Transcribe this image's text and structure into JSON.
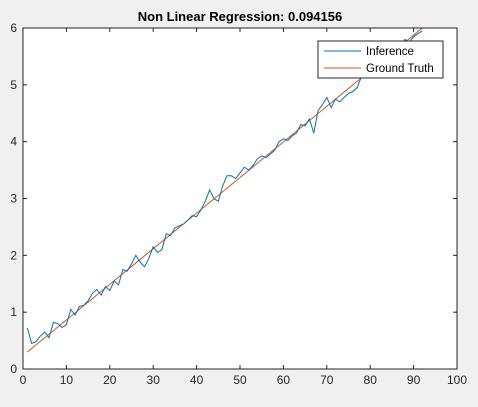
{
  "chart_data": {
    "type": "line",
    "title": "Non Linear Regression: 0.094156",
    "xlabel": "",
    "ylabel": "",
    "xlim": [
      0,
      100
    ],
    "ylim": [
      0,
      6
    ],
    "x_ticks": [
      0,
      10,
      20,
      30,
      40,
      50,
      60,
      70,
      80,
      90,
      100
    ],
    "y_ticks": [
      0,
      1,
      2,
      3,
      4,
      5,
      6
    ],
    "grid": false,
    "legend_position": "top-right",
    "series": [
      {
        "name": "Inference",
        "color": "#0072bd",
        "x": [
          1,
          2,
          3,
          4,
          5,
          6,
          7,
          8,
          9,
          10,
          11,
          12,
          13,
          14,
          15,
          16,
          17,
          18,
          19,
          20,
          21,
          22,
          23,
          24,
          25,
          26,
          27,
          28,
          29,
          30,
          31,
          32,
          33,
          34,
          35,
          36,
          37,
          38,
          39,
          40,
          41,
          42,
          43,
          44,
          45,
          46,
          47,
          48,
          49,
          50,
          51,
          52,
          53,
          54,
          55,
          56,
          57,
          58,
          59,
          60,
          61,
          62,
          63,
          64,
          65,
          66,
          67,
          68,
          69,
          70,
          71,
          72,
          73,
          74,
          75,
          76,
          77,
          78,
          79,
          80,
          81,
          82,
          83,
          84,
          85,
          86,
          87,
          88,
          89,
          90,
          91,
          92
        ],
        "y": [
          0.72,
          0.45,
          0.48,
          0.58,
          0.65,
          0.55,
          0.82,
          0.8,
          0.73,
          0.78,
          1.05,
          0.95,
          1.1,
          1.12,
          1.2,
          1.33,
          1.4,
          1.3,
          1.45,
          1.38,
          1.55,
          1.48,
          1.75,
          1.72,
          1.85,
          2.0,
          1.88,
          1.8,
          1.95,
          2.15,
          2.05,
          2.1,
          2.38,
          2.35,
          2.48,
          2.52,
          2.55,
          2.62,
          2.7,
          2.68,
          2.8,
          2.95,
          3.15,
          3.0,
          2.95,
          3.22,
          3.4,
          3.4,
          3.35,
          3.45,
          3.55,
          3.5,
          3.58,
          3.7,
          3.75,
          3.72,
          3.78,
          3.85,
          4.0,
          4.05,
          4.02,
          4.1,
          4.15,
          4.3,
          4.28,
          4.4,
          4.15,
          4.55,
          4.65,
          4.78,
          4.6,
          4.75,
          4.7,
          4.78,
          4.85,
          4.88,
          4.95,
          5.15,
          5.2,
          5.28,
          5.3,
          5.35,
          5.4,
          5.48,
          5.55,
          5.6,
          5.7,
          5.8,
          5.75,
          5.85,
          5.9,
          5.95
        ]
      },
      {
        "name": "Ground Truth",
        "color": "#d95319",
        "x": [
          1,
          92
        ],
        "y": [
          0.3,
          6.0
        ]
      }
    ]
  }
}
